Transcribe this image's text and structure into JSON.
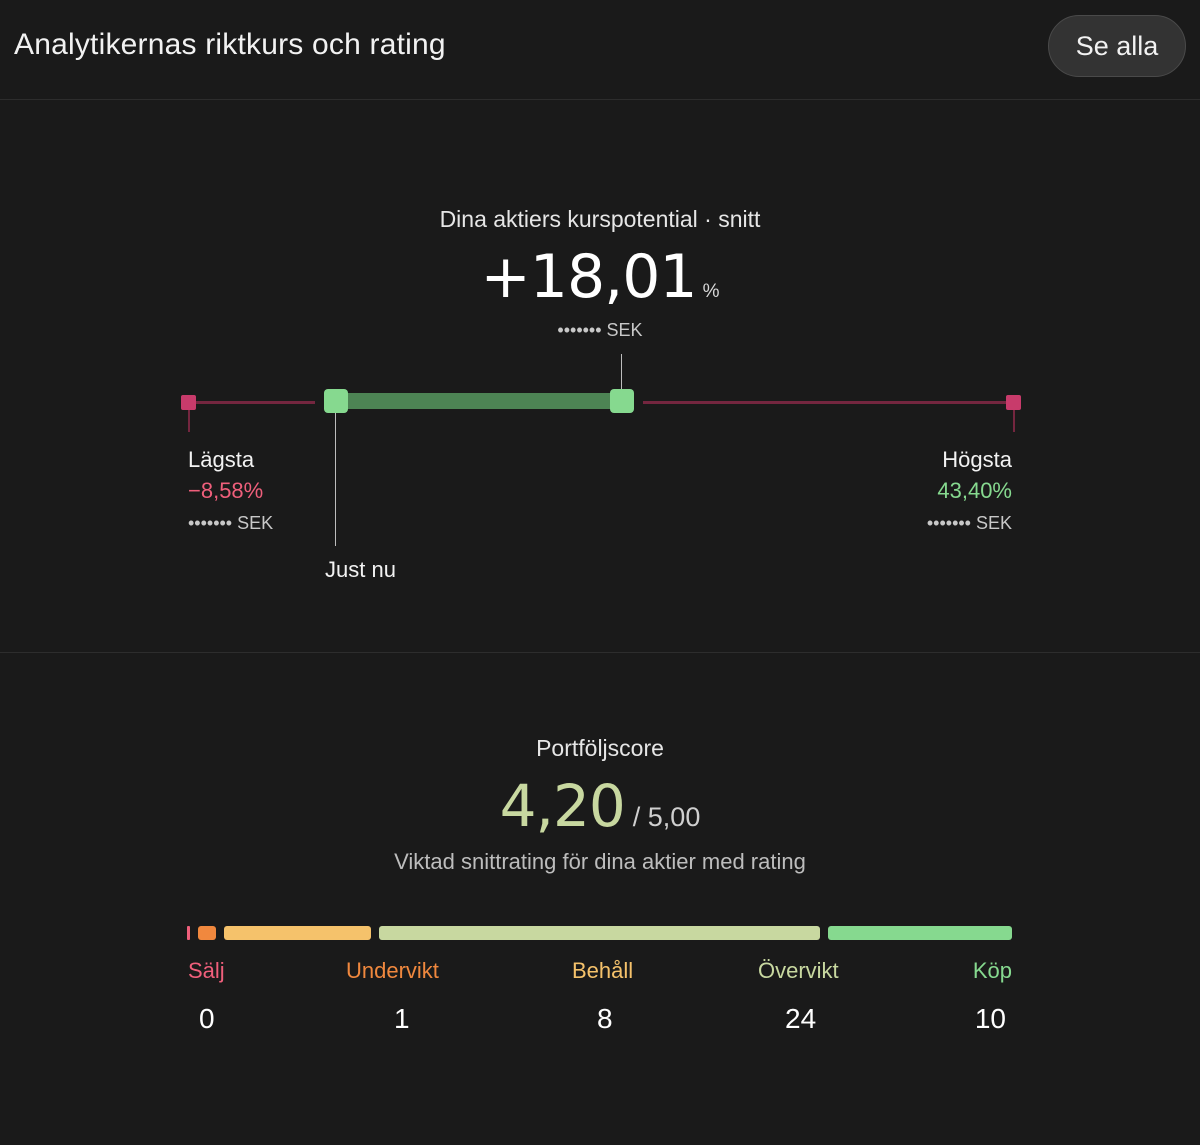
{
  "header": {
    "title": "Analytikernas riktkurs och rating",
    "see_all_label": "Se alla"
  },
  "potential": {
    "label": "Dina aktiers kurspotential · snitt",
    "value": "+18,01",
    "unit": "%",
    "target_sek": "••••••• SEK",
    "range": {
      "low_label": "Lägsta",
      "low_pct": "−8,58%",
      "low_sek": "••••••• SEK",
      "high_label": "Högsta",
      "high_pct": "43,40%",
      "high_sek": "••••••• SEK",
      "now_label": "Just nu"
    },
    "colors": {
      "low": "#ef5f7b",
      "high": "#86d98f",
      "bar": "#4d8454",
      "line": "#74263f"
    }
  },
  "score": {
    "label": "Portföljscore",
    "value": "4,20",
    "max": "/ 5,00",
    "subtitle": "Viktad snittrating för dina aktier med rating",
    "categories": [
      {
        "name": "Sälj",
        "count": "0",
        "color": "#ef5f7b"
      },
      {
        "name": "Undervikt",
        "count": "1",
        "color": "#f0883e"
      },
      {
        "name": "Behåll",
        "count": "8",
        "color": "#f5c26b"
      },
      {
        "name": "Övervikt",
        "count": "24",
        "color": "#c8d8a0"
      },
      {
        "name": "Köp",
        "count": "10",
        "color": "#86d98f"
      }
    ]
  }
}
